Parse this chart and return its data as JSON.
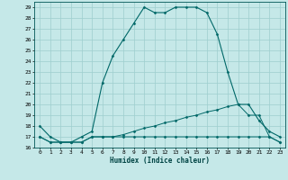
{
  "title": "",
  "xlabel": "Humidex (Indice chaleur)",
  "ylabel": "",
  "xlim": [
    -0.5,
    23.5
  ],
  "ylim": [
    16,
    29.5
  ],
  "yticks": [
    16,
    17,
    18,
    19,
    20,
    21,
    22,
    23,
    24,
    25,
    26,
    27,
    28,
    29
  ],
  "xticks": [
    0,
    1,
    2,
    3,
    4,
    5,
    6,
    7,
    8,
    9,
    10,
    11,
    12,
    13,
    14,
    15,
    16,
    17,
    18,
    19,
    20,
    21,
    22,
    23
  ],
  "background_color": "#c5e8e8",
  "grid_color": "#9ecece",
  "line_color": "#006868",
  "line1_x": [
    0,
    1,
    2,
    3,
    4,
    5,
    6,
    7,
    8,
    9,
    10,
    11,
    12,
    13,
    14,
    15,
    16,
    17,
    18,
    19,
    20,
    21,
    22,
    23
  ],
  "line1_y": [
    18.0,
    17.0,
    16.5,
    16.5,
    17.0,
    17.5,
    22.0,
    24.5,
    26.0,
    27.5,
    29.0,
    28.5,
    28.5,
    29.0,
    29.0,
    29.0,
    28.5,
    26.5,
    23.0,
    20.0,
    20.0,
    18.5,
    17.5,
    17.0
  ],
  "line2_x": [
    0,
    1,
    2,
    3,
    4,
    5,
    6,
    7,
    8,
    9,
    10,
    11,
    12,
    13,
    14,
    15,
    16,
    17,
    18,
    19,
    20,
    21,
    22,
    23
  ],
  "line2_y": [
    17.0,
    16.5,
    16.5,
    16.5,
    16.5,
    17.0,
    17.0,
    17.0,
    17.2,
    17.5,
    17.8,
    18.0,
    18.3,
    18.5,
    18.8,
    19.0,
    19.3,
    19.5,
    19.8,
    20.0,
    19.0,
    19.0,
    17.0,
    16.5
  ],
  "line3_x": [
    0,
    1,
    2,
    3,
    4,
    5,
    6,
    7,
    8,
    9,
    10,
    11,
    12,
    13,
    14,
    15,
    16,
    17,
    18,
    19,
    20,
    21,
    22,
    23
  ],
  "line3_y": [
    17.0,
    16.5,
    16.5,
    16.5,
    16.5,
    17.0,
    17.0,
    17.0,
    17.0,
    17.0,
    17.0,
    17.0,
    17.0,
    17.0,
    17.0,
    17.0,
    17.0,
    17.0,
    17.0,
    17.0,
    17.0,
    17.0,
    17.0,
    16.5
  ]
}
